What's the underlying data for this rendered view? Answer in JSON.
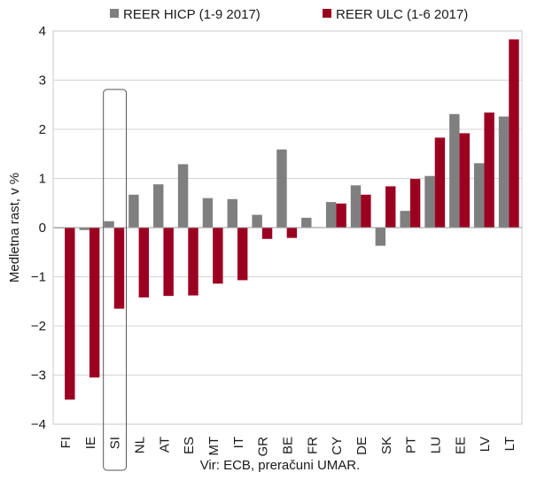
{
  "chart_data": {
    "type": "bar",
    "categories": [
      "FI",
      "IE",
      "SI",
      "NL",
      "AT",
      "ES",
      "MT",
      "IT",
      "GR",
      "BE",
      "FR",
      "CY",
      "DE",
      "SK",
      "PT",
      "LU",
      "EE",
      "LV",
      "LT"
    ],
    "series": [
      {
        "name": "REER HICP (1-9 2017)",
        "color": "#7f7f7f",
        "values": [
          0.0,
          -0.05,
          0.13,
          0.67,
          0.88,
          1.29,
          0.6,
          0.58,
          0.26,
          1.59,
          0.2,
          0.52,
          0.86,
          -0.37,
          0.34,
          1.05,
          2.31,
          1.31,
          2.26
        ]
      },
      {
        "name": "REER ULC (1-6 2017)",
        "color": "#9b0021",
        "values": [
          -3.5,
          -3.05,
          -1.65,
          -1.42,
          -1.39,
          -1.38,
          -1.14,
          -1.07,
          -0.23,
          -0.21,
          0.01,
          0.49,
          0.67,
          0.84,
          0.99,
          1.83,
          1.92,
          2.34,
          3.83
        ]
      }
    ],
    "ylabel": "Medletna rast, v %",
    "ylim": [
      -4,
      4
    ],
    "yticks": [
      -4,
      -3,
      -2,
      -1,
      0,
      1,
      2,
      3,
      4
    ],
    "grid": true,
    "legend": "top",
    "highlight_category": "SI",
    "source": "Vir: ECB, preračuni UMAR."
  }
}
